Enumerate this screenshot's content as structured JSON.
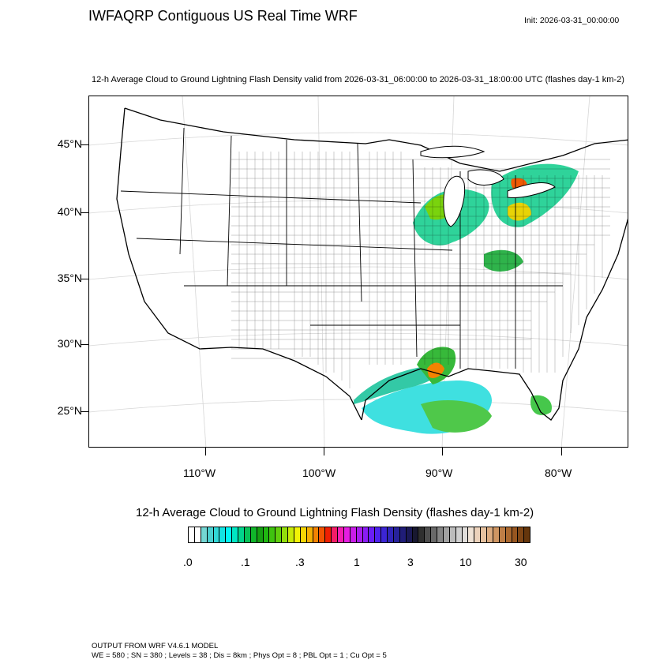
{
  "header": {
    "title": "IWFAQRP Contiguous US Real Time WRF",
    "init": "Init: 2026-03-31_00:00:00",
    "subtitle": "12-h Average Cloud to Ground Lightning Flash Density valid from 2026-03-31_06:00:00 to 2026-03-31_18:00:00 UTC   (flashes day-1 km-2)"
  },
  "map": {
    "lat_labels": [
      "45°N",
      "40°N",
      "35°N",
      "30°N",
      "25°N"
    ],
    "lon_labels": [
      "110°W",
      "100°W",
      "90°W",
      "80°W"
    ]
  },
  "colorbar": {
    "title": "12-h Average Cloud to Ground Lightning Flash Density  (flashes day-1 km-2)",
    "tick_labels": [
      ".0",
      ".1",
      ".3",
      "1",
      "3",
      "10",
      "30"
    ],
    "colors": [
      "#ffffff",
      "#ffffff",
      "#74d6d3",
      "#4bcfd0",
      "#31d7d7",
      "#13e3e3",
      "#00f5f5",
      "#00e6c3",
      "#02d48b",
      "#07c259",
      "#10b52a",
      "#16a012",
      "#1fb811",
      "#3fc30f",
      "#60cf0d",
      "#93de0b",
      "#c8ea08",
      "#f2f306",
      "#f6d604",
      "#f5b003",
      "#f38302",
      "#f25301",
      "#f01f02",
      "#f31c66",
      "#f31cb2",
      "#e51de2",
      "#c91de8",
      "#a81cee",
      "#8a1cf5",
      "#6a1ef6",
      "#4e22ee",
      "#3c25d6",
      "#3024b8",
      "#27229a",
      "#201d78",
      "#1b1956",
      "#181830",
      "#2f2f2f",
      "#4d4d4d",
      "#696969",
      "#868686",
      "#a2a2a2",
      "#bcbcbc",
      "#d0d0d0",
      "#e0ddda",
      "#efe2d5",
      "#ecd2bb",
      "#e5c19f",
      "#dcac81",
      "#cf9663",
      "#be7e46",
      "#ab692f",
      "#975620",
      "#7f4615",
      "#65360c"
    ]
  },
  "footer": {
    "line1": "OUTPUT FROM WRF V4.6.1 MODEL",
    "line2": "WE = 580 ; SN = 380 ; Levels = 38 ; Dis = 8km ; Phys Opt = 8 ; PBL Opt = 1 ; Cu Opt = 5"
  }
}
